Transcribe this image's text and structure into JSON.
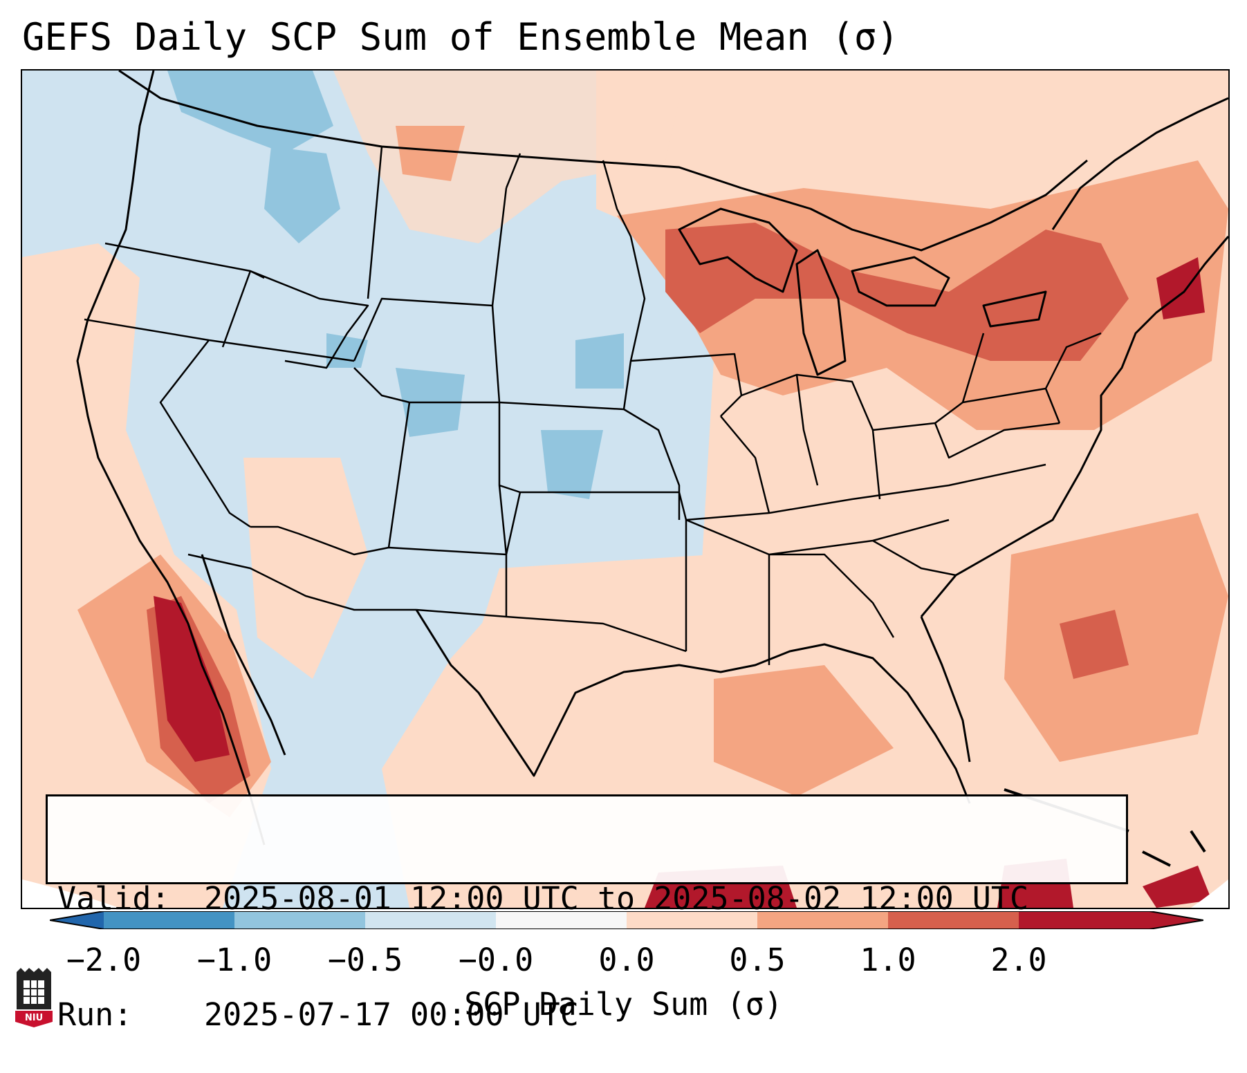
{
  "title": "GEFS Daily SCP Sum of Ensemble Mean (σ)",
  "info": {
    "valid_label": "Valid:",
    "valid_value": "2025-08-01 12:00 UTC to 2025-08-02 12:00 UTC",
    "run_label": "Run:",
    "run_value": "2025-07-17 00:00 UTC"
  },
  "colorbar": {
    "label": "SCP Daily Sum (σ)",
    "ticks": [
      "−2.0",
      "−1.0",
      "−0.5",
      "−0.0",
      "0.0",
      "0.5",
      "1.0",
      "2.0"
    ],
    "colors": [
      "#4393c3",
      "#92c5de",
      "#d1e5f0",
      "#f7f7f7",
      "#fddbc7",
      "#f4a582",
      "#d6604d",
      "#b2182b"
    ],
    "under_color": "#2166ac",
    "over_color": "#b2182b"
  },
  "map": {
    "background_color": "#cfe3f0",
    "coastline_color": "#000000"
  },
  "logo": {
    "text": "NIU",
    "color": "#c8102e"
  }
}
